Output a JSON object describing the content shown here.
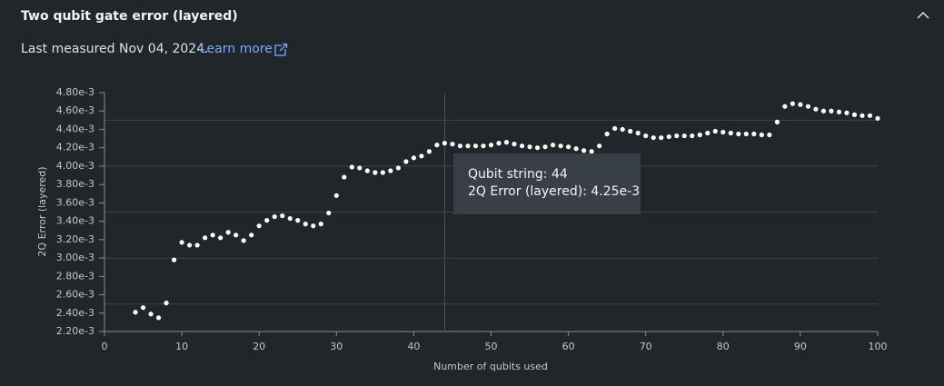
{
  "header": {
    "title": "Two qubit gate error (layered)",
    "last_measured": "Last measured Nov 04, 2024.",
    "link": "Learn more"
  },
  "chart_data": {
    "type": "scatter",
    "xlabel": "Number of qubits used",
    "ylabel": "2Q Error (layered)",
    "series": [
      {
        "name": "2Q Error (layered)",
        "color": "#ffffff",
        "x": [
          4,
          5,
          6,
          7,
          8,
          9,
          10,
          11,
          12,
          13,
          14,
          15,
          16,
          17,
          18,
          19,
          20,
          21,
          22,
          23,
          24,
          25,
          26,
          27,
          28,
          29,
          30,
          31,
          32,
          33,
          34,
          35,
          36,
          37,
          38,
          39,
          40,
          41,
          42,
          43,
          44,
          45,
          46,
          47,
          48,
          49,
          50,
          51,
          52,
          53,
          54,
          55,
          56,
          57,
          58,
          59,
          60,
          61,
          62,
          63,
          64,
          65,
          66,
          67,
          68,
          69,
          70,
          71,
          72,
          73,
          74,
          75,
          76,
          77,
          78,
          79,
          80,
          81,
          82,
          83,
          84,
          85,
          86,
          87,
          88,
          89,
          90,
          91,
          92,
          93,
          94,
          95,
          96,
          97,
          98,
          99,
          100
        ],
        "values": [
          0.00241,
          0.00246,
          0.00239,
          0.00235,
          0.00251,
          0.00298,
          0.00317,
          0.00314,
          0.00314,
          0.00322,
          0.00325,
          0.00322,
          0.00328,
          0.00325,
          0.00319,
          0.00325,
          0.00335,
          0.00341,
          0.00345,
          0.00346,
          0.00343,
          0.00341,
          0.00337,
          0.00335,
          0.00337,
          0.00349,
          0.00368,
          0.00388,
          0.00399,
          0.00398,
          0.00395,
          0.00393,
          0.00393,
          0.00395,
          0.00398,
          0.00405,
          0.00409,
          0.00411,
          0.00416,
          0.00423,
          0.00425,
          0.00424,
          0.00422,
          0.00422,
          0.00422,
          0.00422,
          0.00423,
          0.00425,
          0.00426,
          0.00424,
          0.00422,
          0.00421,
          0.0042,
          0.00421,
          0.00423,
          0.00422,
          0.00421,
          0.00419,
          0.00417,
          0.00416,
          0.00422,
          0.00435,
          0.00441,
          0.0044,
          0.00438,
          0.00436,
          0.00433,
          0.00431,
          0.00431,
          0.00432,
          0.00433,
          0.00433,
          0.00433,
          0.00434,
          0.00436,
          0.00438,
          0.00437,
          0.00436,
          0.00435,
          0.00435,
          0.00435,
          0.00434,
          0.00434,
          0.00448,
          0.00465,
          0.00468,
          0.00467,
          0.00465,
          0.00462,
          0.0046,
          0.0046,
          0.00459,
          0.00458,
          0.00456,
          0.00455,
          0.00455,
          0.00452
        ]
      }
    ],
    "xlim": [
      0,
      100
    ],
    "xticks": [
      0,
      10,
      20,
      30,
      40,
      50,
      60,
      70,
      80,
      90,
      100
    ],
    "ylim": [
      0.0022,
      0.0048
    ],
    "yticks": [
      {
        "value": 0.0022,
        "label": "2.20e-3"
      },
      {
        "value": 0.0024,
        "label": "2.40e-3"
      },
      {
        "value": 0.0026,
        "label": "2.60e-3"
      },
      {
        "value": 0.0028,
        "label": "2.80e-3"
      },
      {
        "value": 0.003,
        "label": "3.00e-3"
      },
      {
        "value": 0.0032,
        "label": "3.20e-3"
      },
      {
        "value": 0.0034,
        "label": "3.40e-3"
      },
      {
        "value": 0.0036,
        "label": "3.60e-3"
      },
      {
        "value": 0.0038,
        "label": "3.80e-3"
      },
      {
        "value": 0.004,
        "label": "4.00e-3"
      },
      {
        "value": 0.0042,
        "label": "4.20e-3"
      },
      {
        "value": 0.0044,
        "label": "4.40e-3"
      },
      {
        "value": 0.0046,
        "label": "4.60e-3"
      },
      {
        "value": 0.0048,
        "label": "4.80e-3"
      }
    ],
    "ygrid": [
      0.0025,
      0.003,
      0.0035,
      0.004,
      0.0045
    ]
  },
  "tooltip": {
    "x": 44,
    "line1": "Qubit string: 44",
    "line2": "2Q Error (layered): 4.25e-3"
  }
}
